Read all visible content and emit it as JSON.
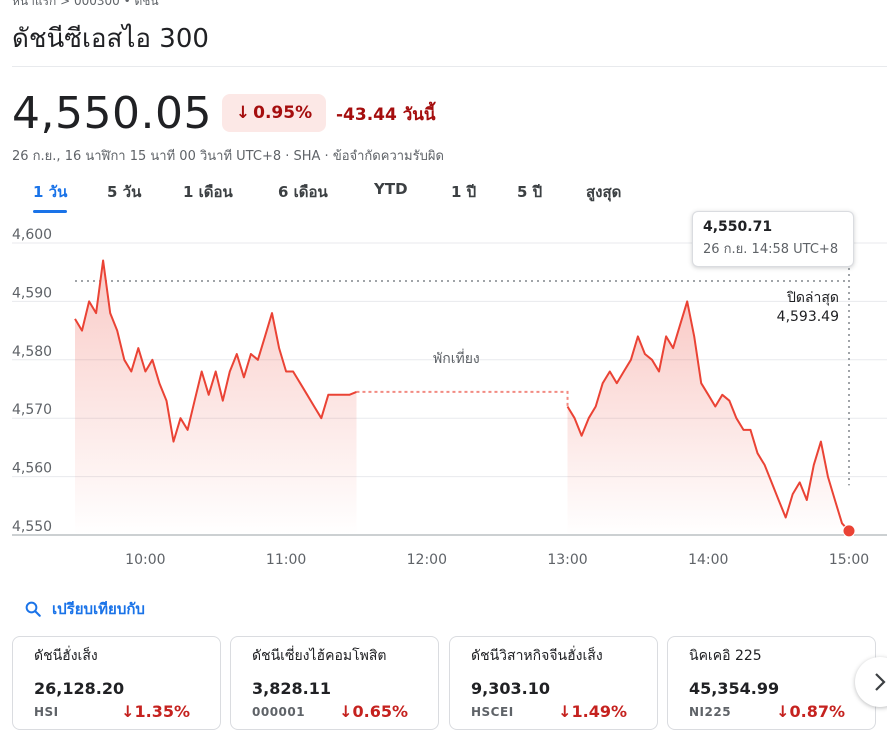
{
  "breadcrumb": "หน้าแรก > 000300 • ดัชนี",
  "title": "ดัชนีซีเอสไอ 300",
  "price": "4,550.05",
  "change_pct": "0.95%",
  "change_abs": "-43.44 วันนี้",
  "meta": "26 ก.ย., 16 นาฬิกา 15 นาที 00 วินาที UTC+8 · SHA · ข้อจำกัดความรับผิด",
  "tabs": [
    "1 วัน",
    "5 วัน",
    "1 เดือน",
    "6 เดือน",
    "YTD",
    "1 ปี",
    "5 ปี",
    "สูงสุด"
  ],
  "active_tab": 0,
  "tooltip": {
    "value": "4,550.71",
    "time": "26 ก.ย. 14:58 UTC+8"
  },
  "prev_close": {
    "label": "ปิดล่าสุด",
    "value": "4,593.49"
  },
  "lunch_label": "พักเที่ยง",
  "compare_label": "เปรียบเทียบกับ",
  "colors": {
    "down": "#d93025",
    "down_text": "#a50e0e",
    "chip_bg": "#fce8e6",
    "accent": "#1a73e8"
  },
  "chart_data": {
    "type": "line",
    "ylim": [
      4550,
      4600
    ],
    "yticks": [
      "4,600",
      "4,590",
      "4,580",
      "4,570",
      "4,560",
      "4,550"
    ],
    "xticks": [
      "10:00",
      "11:00",
      "12:00",
      "13:00",
      "14:00",
      "15:00"
    ],
    "previous_close": 4593.49,
    "morning": {
      "x": [
        "09:30",
        "09:33",
        "09:36",
        "09:39",
        "09:42",
        "09:45",
        "09:48",
        "09:51",
        "09:54",
        "09:57",
        "10:00",
        "10:03",
        "10:06",
        "10:09",
        "10:12",
        "10:15",
        "10:18",
        "10:21",
        "10:24",
        "10:27",
        "10:30",
        "10:33",
        "10:36",
        "10:39",
        "10:42",
        "10:45",
        "10:48",
        "10:51",
        "10:54",
        "10:57",
        "11:00",
        "11:03",
        "11:06",
        "11:09",
        "11:12",
        "11:15",
        "11:18",
        "11:21",
        "11:24",
        "11:27",
        "11:30"
      ],
      "y": [
        4587,
        4585,
        4590,
        4588,
        4597,
        4588,
        4585,
        4580,
        4578,
        4582,
        4578,
        4580,
        4576,
        4573,
        4566,
        4570,
        4568,
        4573,
        4578,
        4574,
        4578,
        4573,
        4578,
        4581,
        4577,
        4581,
        4580,
        4584,
        4588,
        4582,
        4578,
        4578,
        4576,
        4574,
        4572,
        4570,
        4574,
        4574,
        4574,
        4574,
        4574.5
      ]
    },
    "afternoon": {
      "x": [
        "13:00",
        "13:03",
        "13:06",
        "13:09",
        "13:12",
        "13:15",
        "13:18",
        "13:21",
        "13:24",
        "13:27",
        "13:30",
        "13:33",
        "13:36",
        "13:39",
        "13:42",
        "13:45",
        "13:48",
        "13:51",
        "13:54",
        "13:57",
        "14:00",
        "14:03",
        "14:06",
        "14:09",
        "14:12",
        "14:15",
        "14:18",
        "14:21",
        "14:24",
        "14:27",
        "14:30",
        "14:33",
        "14:36",
        "14:39",
        "14:42",
        "14:45",
        "14:48",
        "14:51",
        "14:54",
        "14:57",
        "15:00"
      ],
      "y": [
        4572,
        4570,
        4567,
        4570,
        4572,
        4576,
        4578,
        4576,
        4578,
        4580,
        4584,
        4581,
        4580,
        4578,
        4584,
        4582,
        4586,
        4590,
        4584,
        4576,
        4574,
        4572,
        4574,
        4573,
        4570,
        4568,
        4568,
        4564,
        4562,
        4559,
        4556,
        4553,
        4557,
        4559,
        4556,
        4562,
        4566,
        4560,
        4556,
        4552,
        4550.71
      ]
    },
    "last": {
      "x": "15:00",
      "y": 4550.71
    }
  },
  "compare_cards": [
    {
      "name": "ดัชนีฮั่งเส็ง",
      "price": "26,128.20",
      "symbol": "HSI",
      "change": "1.35%"
    },
    {
      "name": "ดัชนีเซี่ยงไฮ้คอมโพสิต",
      "price": "3,828.11",
      "symbol": "000001",
      "change": "0.65%"
    },
    {
      "name": "ดัชนีวิสาหกิจจีนฮั่งเส็ง",
      "price": "9,303.10",
      "symbol": "HSCEI",
      "change": "1.49%"
    },
    {
      "name": "นิคเคอิ 225",
      "price": "45,354.99",
      "symbol": "NI225",
      "change": "0.87%"
    }
  ]
}
